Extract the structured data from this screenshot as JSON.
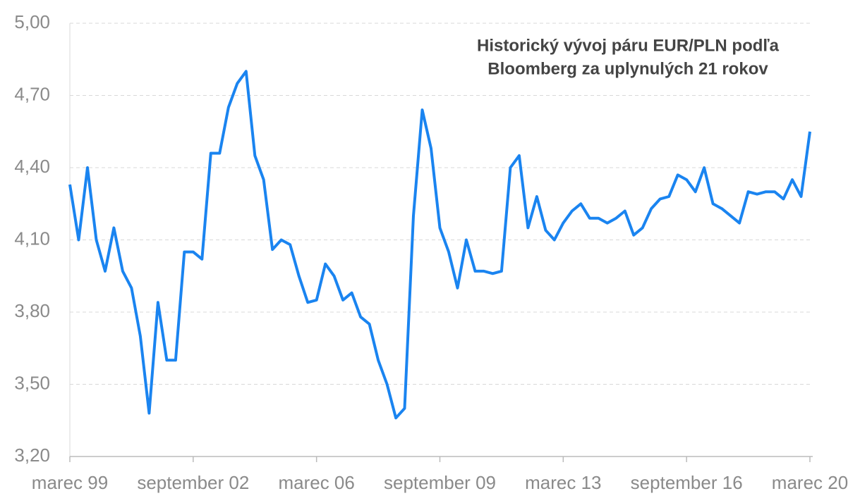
{
  "chart_data": {
    "type": "line",
    "title": [
      "Historický vývoj páru EUR/PLN podľa",
      "Bloomberg za uplynulých 21 rokov"
    ],
    "categories": [
      "marec 99",
      null,
      null,
      null,
      null,
      null,
      null,
      null,
      null,
      null,
      null,
      null,
      null,
      null,
      "september 02",
      null,
      null,
      null,
      null,
      null,
      null,
      null,
      null,
      null,
      null,
      null,
      null,
      null,
      "marec 06",
      null,
      null,
      null,
      null,
      null,
      null,
      null,
      null,
      null,
      null,
      null,
      null,
      null,
      "september 09",
      null,
      null,
      null,
      null,
      null,
      null,
      null,
      null,
      null,
      null,
      null,
      null,
      null,
      "marec 13",
      null,
      null,
      null,
      null,
      null,
      null,
      null,
      null,
      null,
      null,
      null,
      null,
      null,
      "september 16",
      null,
      null,
      null,
      null,
      null,
      null,
      null,
      null,
      null,
      null,
      null,
      null,
      null,
      "marec 20"
    ],
    "series": [
      {
        "name": "EUR/PLN",
        "color": "#1a84f0",
        "values": [
          4.33,
          4.1,
          4.4,
          4.1,
          3.97,
          4.15,
          3.97,
          3.9,
          3.7,
          3.38,
          3.84,
          3.6,
          3.6,
          4.05,
          4.05,
          4.02,
          4.46,
          4.46,
          4.65,
          4.75,
          4.8,
          4.45,
          4.35,
          4.06,
          4.1,
          4.08,
          3.95,
          3.84,
          3.85,
          4.0,
          3.95,
          3.85,
          3.88,
          3.78,
          3.75,
          3.6,
          3.5,
          3.36,
          3.4,
          4.2,
          4.64,
          4.48,
          4.15,
          4.05,
          3.9,
          4.1,
          3.97,
          3.97,
          3.96,
          3.97,
          4.4,
          4.45,
          4.15,
          4.28,
          4.14,
          4.1,
          4.17,
          4.22,
          4.25,
          4.19,
          4.19,
          4.17,
          4.19,
          4.22,
          4.12,
          4.15,
          4.23,
          4.27,
          4.28,
          4.37,
          4.35,
          4.3,
          4.4,
          4.25,
          4.23,
          4.2,
          4.17,
          4.3,
          4.29,
          4.3,
          4.3,
          4.27,
          4.35,
          4.28,
          4.55
        ]
      }
    ],
    "ylim": [
      3.2,
      5.0
    ],
    "yticks": [
      {
        "value": 3.2,
        "label": "3,20"
      },
      {
        "value": 3.5,
        "label": "3,50"
      },
      {
        "value": 3.8,
        "label": "3,80"
      },
      {
        "value": 4.1,
        "label": "4,10"
      },
      {
        "value": 4.4,
        "label": "4,40"
      },
      {
        "value": 4.7,
        "label": "4,70"
      },
      {
        "value": 5.0,
        "label": "5,00"
      }
    ],
    "grid": true
  }
}
